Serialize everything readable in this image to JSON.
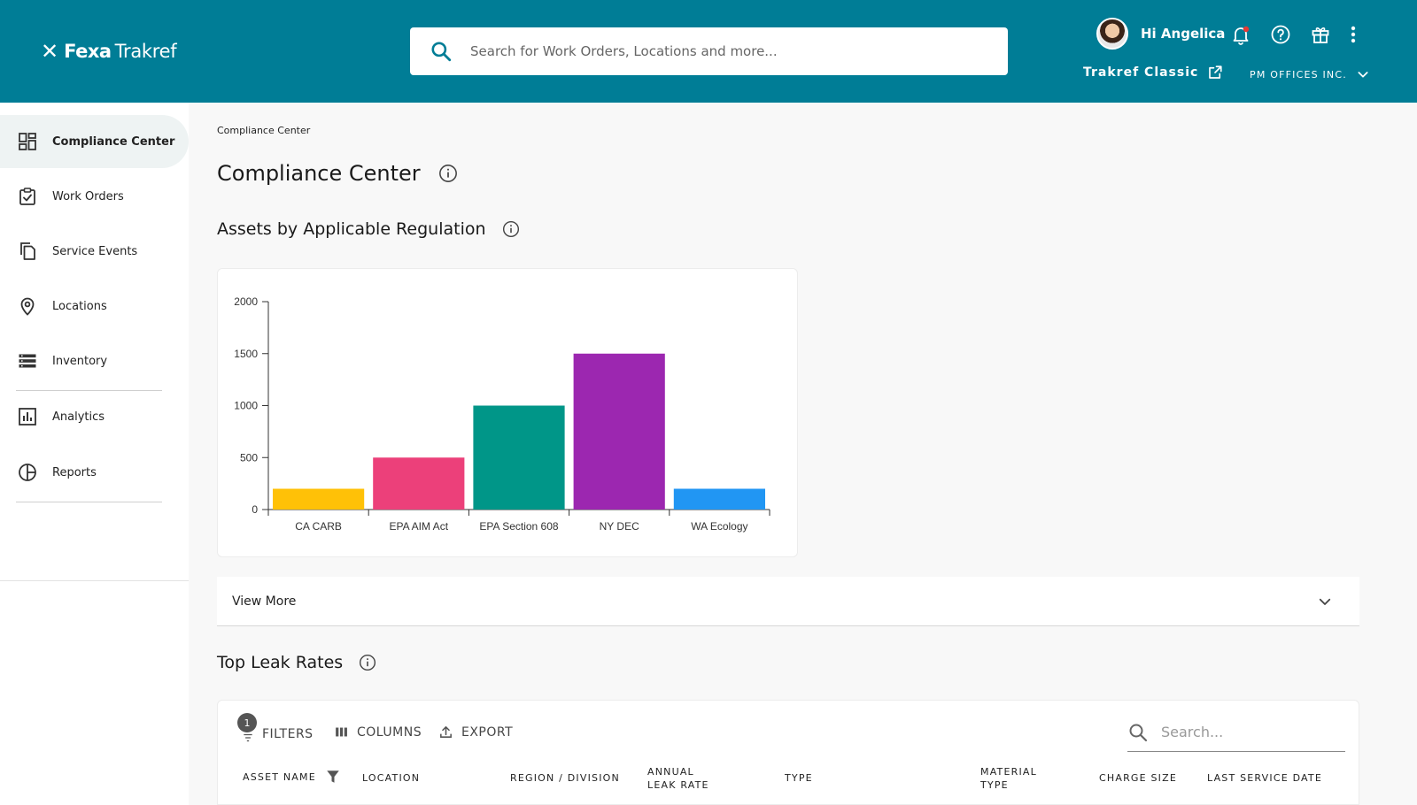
{
  "header": {
    "logo_mark": "✕",
    "logo_bold": "Fexa",
    "logo_light": "Trakref",
    "search_placeholder": "Search for Work Orders, Locations and more...",
    "greeting": "Hi Angelica",
    "classic_link": "Trakref Classic",
    "org_name": "PM OFFICES INC.",
    "icons": [
      "search-icon",
      "bell-icon",
      "help-icon",
      "gift-icon",
      "more-vert-icon",
      "external-link-icon",
      "chevron-down-icon"
    ],
    "bg_color": "#007d96"
  },
  "sidebar": {
    "items": [
      {
        "label": "Compliance Center",
        "icon": "dashboard-icon",
        "active": true
      },
      {
        "label": "Work Orders",
        "icon": "clipboard-check-icon",
        "active": false
      },
      {
        "label": "Service Events",
        "icon": "copy-icon",
        "active": false
      },
      {
        "label": "Locations",
        "icon": "location-pin-icon",
        "active": false
      },
      {
        "label": "Inventory",
        "icon": "list-icon",
        "active": false
      },
      {
        "label": "Analytics",
        "icon": "bar-chart-icon",
        "active": false
      },
      {
        "label": "Reports",
        "icon": "pie-icon",
        "active": false
      }
    ]
  },
  "main": {
    "breadcrumb": "Compliance Center",
    "title": "Compliance Center",
    "section1_title": "Assets by Applicable Regulation",
    "view_more": "View More",
    "section2_title": "Top Leak Rates"
  },
  "table": {
    "filter_count": "1",
    "filters_label": "FILTERS",
    "columns_label": "COLUMNS",
    "export_label": "EXPORT",
    "search_placeholder": "Search...",
    "columns": [
      {
        "line1": "ASSET NAME",
        "line2": ""
      },
      {
        "line1": "LOCATION",
        "line2": ""
      },
      {
        "line1": "REGION / DIVISION",
        "line2": ""
      },
      {
        "line1": "ANNUAL",
        "line2": "LEAK RATE"
      },
      {
        "line1": "TYPE",
        "line2": ""
      },
      {
        "line1": "MATERIAL",
        "line2": "TYPE"
      },
      {
        "line1": "CHARGE SIZE",
        "line2": ""
      },
      {
        "line1": "LAST SERVICE DATE",
        "line2": ""
      }
    ]
  },
  "chart_data": {
    "type": "bar",
    "categories": [
      "CA CARB",
      "EPA AIM Act",
      "EPA Section 608",
      "NY DEC",
      "WA Ecology"
    ],
    "values": [
      200,
      500,
      1000,
      1500,
      200
    ],
    "colors": [
      "#ffc107",
      "#ec407a",
      "#009688",
      "#9c27b0",
      "#2196f3"
    ],
    "title": "",
    "xlabel": "",
    "ylabel": "",
    "ylim": [
      0,
      2000
    ],
    "yticks": [
      0,
      500,
      1000,
      1500,
      2000
    ],
    "grid": false,
    "legend": "none"
  }
}
